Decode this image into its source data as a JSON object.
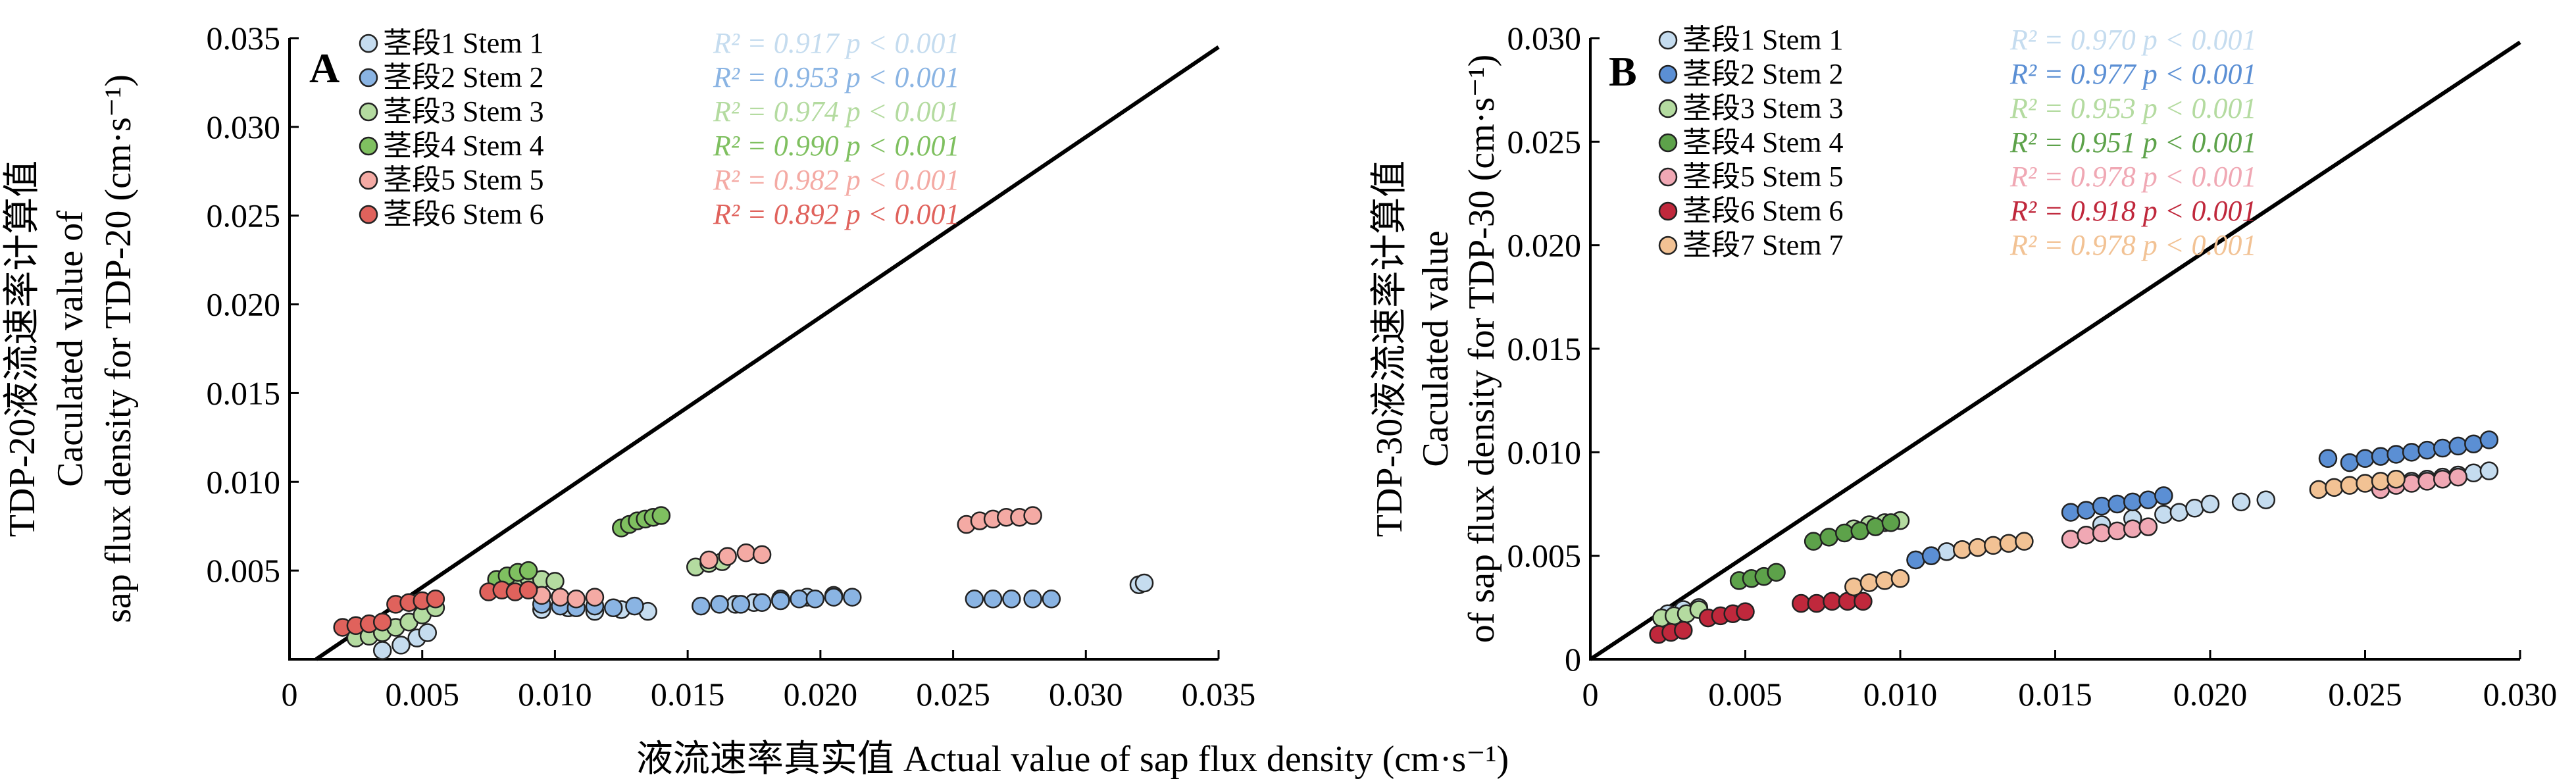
{
  "figure": {
    "x_axis_title": "液流速率真实值  Actual value of sap flux density (cm·s⁻¹)"
  },
  "chart_data": [
    {
      "type": "scatter",
      "panel_label": "A",
      "ylabel_cn": "TDP-20液流速率计算值",
      "ylabel_en_1": "Caculated value of",
      "ylabel_en_2": "sap flux density for TDP-20 (cm·s⁻¹)",
      "xlim": [
        0,
        0.035
      ],
      "ylim": [
        0,
        0.035
      ],
      "x_ticks": [
        "0",
        "0.005",
        "0.010",
        "0.015",
        "0.020",
        "0.025",
        "0.030",
        "0.035"
      ],
      "y_ticks": [
        "0.005",
        "0.010",
        "0.015",
        "0.020",
        "0.025",
        "0.030",
        "0.035"
      ],
      "reference_line": [
        [
          0.001,
          0
        ],
        [
          0.035,
          0.0345
        ]
      ],
      "legend_position": "top-left",
      "series": [
        {
          "name": "茎段1 Stem 1",
          "r2": "R² = 0.917",
          "p": "p < 0.001",
          "color": "#c5dcef",
          "x": [
            0.0035,
            0.0042,
            0.0048,
            0.0052,
            0.0095,
            0.0105,
            0.0115,
            0.0125,
            0.0135,
            0.0168,
            0.0175,
            0.0185,
            0.0195,
            0.0205,
            0.032,
            0.0322
          ],
          "y": [
            0.0005,
            0.0008,
            0.0012,
            0.0015,
            0.0028,
            0.0029,
            0.0027,
            0.0028,
            0.0027,
            0.0031,
            0.0032,
            0.0034,
            0.0035,
            0.0036,
            0.0042,
            0.0043
          ]
        },
        {
          "name": "茎段2 Stem 2",
          "r2": "R² = 0.953",
          "p": "p < 0.001",
          "color": "#8ab4e3",
          "x": [
            0.0095,
            0.0102,
            0.0108,
            0.0115,
            0.0122,
            0.013,
            0.0155,
            0.0162,
            0.017,
            0.0178,
            0.0185,
            0.0192,
            0.0198,
            0.0205,
            0.0212,
            0.0258,
            0.0265,
            0.0272,
            0.028,
            0.0287
          ],
          "y": [
            0.0031,
            0.003,
            0.0029,
            0.003,
            0.0029,
            0.003,
            0.003,
            0.0031,
            0.0031,
            0.0032,
            0.0033,
            0.0034,
            0.0034,
            0.0035,
            0.0035,
            0.0034,
            0.0034,
            0.0034,
            0.0034,
            0.0034
          ]
        },
        {
          "name": "茎段3 Stem 3",
          "r2": "R² = 0.974",
          "p": "p < 0.001",
          "color": "#b4dba0",
          "x": [
            0.0025,
            0.003,
            0.0035,
            0.004,
            0.0045,
            0.005,
            0.0055,
            0.0085,
            0.009,
            0.0095,
            0.01,
            0.0153,
            0.0158,
            0.0163
          ],
          "y": [
            0.0012,
            0.0013,
            0.0015,
            0.0018,
            0.0021,
            0.0025,
            0.0029,
            0.0044,
            0.0046,
            0.0045,
            0.0044,
            0.0052,
            0.0054,
            0.0055
          ]
        },
        {
          "name": "茎段4 Stem 4",
          "r2": "R² = 0.990",
          "p": "p < 0.001",
          "color": "#7fc060",
          "x": [
            0.0078,
            0.0082,
            0.0086,
            0.009,
            0.0125,
            0.0128,
            0.0131,
            0.0134,
            0.0137,
            0.014
          ],
          "y": [
            0.0045,
            0.0047,
            0.0049,
            0.005,
            0.0074,
            0.0076,
            0.0078,
            0.0079,
            0.008,
            0.0081
          ]
        },
        {
          "name": "茎段5 Stem 5",
          "r2": "R² = 0.982",
          "p": "p < 0.001",
          "color": "#f4aaa4",
          "x": [
            0.0095,
            0.0102,
            0.0108,
            0.0115,
            0.0158,
            0.0165,
            0.0172,
            0.0178,
            0.0255,
            0.026,
            0.0265,
            0.027,
            0.0275,
            0.028
          ],
          "y": [
            0.0036,
            0.0035,
            0.0034,
            0.0035,
            0.0056,
            0.0058,
            0.006,
            0.0059,
            0.0076,
            0.0078,
            0.0079,
            0.008,
            0.008,
            0.0081
          ]
        },
        {
          "name": "茎段6 Stem 6",
          "r2": "R² = 0.892",
          "p": "p < 0.001",
          "color": "#e0625c",
          "x": [
            0.002,
            0.0025,
            0.003,
            0.0035,
            0.004,
            0.0045,
            0.005,
            0.0055,
            0.0075,
            0.008,
            0.0085,
            0.009
          ],
          "y": [
            0.0018,
            0.0019,
            0.002,
            0.0021,
            0.0031,
            0.0032,
            0.0033,
            0.0034,
            0.0038,
            0.0039,
            0.0038,
            0.0039
          ]
        }
      ]
    },
    {
      "type": "scatter",
      "panel_label": "B",
      "ylabel_cn": "TDP-30液流速率计算值",
      "ylabel_en_1": "Caculated value",
      "ylabel_en_2": "of sap flux density for TDP-30 (cm·s⁻¹)",
      "xlim": [
        0,
        0.03
      ],
      "ylim": [
        0,
        0.03
      ],
      "x_ticks": [
        "0",
        "0.005",
        "0.010",
        "0.015",
        "0.020",
        "0.025",
        "0.030"
      ],
      "y_ticks": [
        "0",
        "0.005",
        "0.010",
        "0.015",
        "0.020",
        "0.025",
        "0.030"
      ],
      "reference_line": [
        [
          0,
          0
        ],
        [
          0.03,
          0.0298
        ]
      ],
      "legend_position": "top-left",
      "series": [
        {
          "name": "茎段1 Stem 1",
          "r2": "R² = 0.970",
          "p": "p < 0.001",
          "color": "#c5dcef",
          "x": [
            0.0025,
            0.003,
            0.0035,
            0.0105,
            0.011,
            0.0115,
            0.0165,
            0.0175,
            0.0185,
            0.019,
            0.0195,
            0.02,
            0.021,
            0.0218,
            0.0265,
            0.027,
            0.0275,
            0.028,
            0.0285,
            0.029
          ],
          "y": [
            0.0022,
            0.0024,
            0.0025,
            0.0048,
            0.005,
            0.0052,
            0.0065,
            0.0068,
            0.007,
            0.0071,
            0.0073,
            0.0075,
            0.0076,
            0.0077,
            0.0086,
            0.0087,
            0.0088,
            0.0089,
            0.009,
            0.0091
          ]
        },
        {
          "name": "茎段2 Stem 2",
          "r2": "R² = 0.977",
          "p": "p < 0.001",
          "color": "#5b8fd4",
          "x": [
            0.0105,
            0.011,
            0.0155,
            0.016,
            0.0165,
            0.017,
            0.0175,
            0.018,
            0.0185,
            0.0238,
            0.0245,
            0.025,
            0.0255,
            0.026,
            0.0265,
            0.027,
            0.0275,
            0.028,
            0.0285,
            0.029
          ],
          "y": [
            0.0048,
            0.005,
            0.0071,
            0.0072,
            0.0074,
            0.0075,
            0.0076,
            0.0077,
            0.0079,
            0.0097,
            0.0095,
            0.0097,
            0.0098,
            0.0099,
            0.01,
            0.0101,
            0.0102,
            0.0103,
            0.0104,
            0.0106
          ]
        },
        {
          "name": "茎段3 Stem 3",
          "r2": "R² = 0.953",
          "p": "p < 0.001",
          "color": "#b4dba0",
          "x": [
            0.0023,
            0.0027,
            0.0031,
            0.0035,
            0.0085,
            0.009,
            0.0095,
            0.01
          ],
          "y": [
            0.002,
            0.0021,
            0.0022,
            0.0024,
            0.0063,
            0.0065,
            0.0066,
            0.0067
          ]
        },
        {
          "name": "茎段4 Stem 4",
          "r2": "R² = 0.951",
          "p": "p < 0.001",
          "color": "#5da24a",
          "x": [
            0.0048,
            0.0052,
            0.0056,
            0.006,
            0.0072,
            0.0077,
            0.0082,
            0.0087,
            0.0092,
            0.0097
          ],
          "y": [
            0.0038,
            0.0039,
            0.004,
            0.0042,
            0.0057,
            0.0059,
            0.0061,
            0.0062,
            0.0064,
            0.0066
          ]
        },
        {
          "name": "茎段5 Stem 5",
          "r2": "R² = 0.978",
          "p": "p < 0.001",
          "color": "#f0a8b4",
          "x": [
            0.0155,
            0.016,
            0.0165,
            0.017,
            0.0175,
            0.018,
            0.0255,
            0.026,
            0.0265,
            0.027,
            0.0275,
            0.028
          ],
          "y": [
            0.0058,
            0.006,
            0.0061,
            0.0062,
            0.0063,
            0.0064,
            0.0082,
            0.0084,
            0.0085,
            0.0086,
            0.0087,
            0.0088
          ]
        },
        {
          "name": "茎段6 Stem 6",
          "r2": "R² = 0.918",
          "p": "p < 0.001",
          "color": "#c0283c",
          "x": [
            0.0022,
            0.0026,
            0.003,
            0.0038,
            0.0042,
            0.0046,
            0.005,
            0.0068,
            0.0073,
            0.0078,
            0.0083,
            0.0088
          ],
          "y": [
            0.0012,
            0.0013,
            0.0014,
            0.002,
            0.0021,
            0.0022,
            0.0023,
            0.0027,
            0.0027,
            0.0028,
            0.0028,
            0.0028
          ]
        },
        {
          "name": "茎段7 Stem 7",
          "r2": "R² = 0.978",
          "p": "p < 0.001",
          "color": "#f2c294",
          "x": [
            0.0085,
            0.009,
            0.0095,
            0.01,
            0.012,
            0.0125,
            0.013,
            0.0135,
            0.014,
            0.0235,
            0.024,
            0.0245,
            0.025,
            0.0255,
            0.026
          ],
          "y": [
            0.0035,
            0.0037,
            0.0038,
            0.0039,
            0.0053,
            0.0054,
            0.0055,
            0.0056,
            0.0057,
            0.0082,
            0.0083,
            0.0084,
            0.0085,
            0.0086,
            0.0087
          ]
        }
      ]
    }
  ]
}
